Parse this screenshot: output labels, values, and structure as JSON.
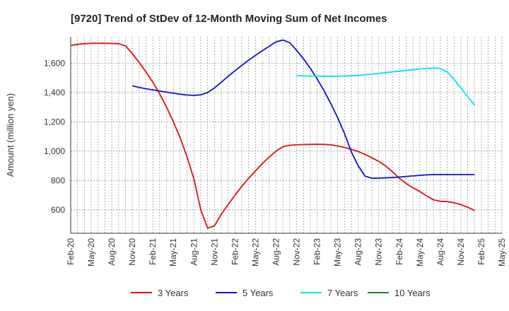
{
  "chart_data": {
    "type": "line",
    "title": "[9720]  Trend of StDev of 12-Month Moving Sum of Net Incomes",
    "xlabel": "",
    "ylabel": "Amount (million yen)",
    "ylim": [
      440,
      1780
    ],
    "y_ticks": [
      600,
      800,
      1000,
      1200,
      1400,
      1600
    ],
    "y_tick_labels": [
      "600",
      "800",
      "1,000",
      "1,200",
      "1,400",
      "1,600"
    ],
    "x_ticks": [
      "Feb-20",
      "May-20",
      "Aug-20",
      "Nov-20",
      "Feb-21",
      "May-21",
      "Aug-21",
      "Nov-21",
      "Feb-22",
      "May-22",
      "Aug-22",
      "Nov-22",
      "Feb-23",
      "May-23",
      "Aug-23",
      "Nov-23",
      "Feb-24",
      "May-24",
      "Aug-24",
      "Nov-24",
      "Feb-25",
      "May-25"
    ],
    "grid": true,
    "legend_position": "bottom",
    "series": [
      {
        "name": "3 Years",
        "color": "#dd1111",
        "points": [
          [
            "Feb-20",
            1720
          ],
          [
            "Mar-20",
            1728
          ],
          [
            "Apr-20",
            1733
          ],
          [
            "May-20",
            1735
          ],
          [
            "Jun-20",
            1736
          ],
          [
            "Jul-20",
            1735
          ],
          [
            "Aug-20",
            1734
          ],
          [
            "Sep-20",
            1733
          ],
          [
            "Oct-20",
            1718
          ],
          [
            "Nov-20",
            1665
          ],
          [
            "Dec-20",
            1605
          ],
          [
            "Jan-21",
            1540
          ],
          [
            "Feb-21",
            1470
          ],
          [
            "Mar-21",
            1390
          ],
          [
            "Apr-21",
            1300
          ],
          [
            "May-21",
            1200
          ],
          [
            "Jun-21",
            1090
          ],
          [
            "Jul-21",
            960
          ],
          [
            "Aug-21",
            810
          ],
          [
            "Sep-21",
            600
          ],
          [
            "Oct-21",
            475
          ],
          [
            "Nov-21",
            490
          ],
          [
            "Dec-21",
            570
          ],
          [
            "Jan-22",
            635
          ],
          [
            "Feb-22",
            700
          ],
          [
            "Mar-22",
            760
          ],
          [
            "Apr-22",
            815
          ],
          [
            "May-22",
            865
          ],
          [
            "Jun-22",
            915
          ],
          [
            "Jul-22",
            960
          ],
          [
            "Aug-22",
            1000
          ],
          [
            "Sep-22",
            1030
          ],
          [
            "Oct-22",
            1040
          ],
          [
            "Nov-22",
            1043
          ],
          [
            "Dec-22",
            1045
          ],
          [
            "Jan-23",
            1046
          ],
          [
            "Feb-23",
            1047
          ],
          [
            "Mar-23",
            1046
          ],
          [
            "Apr-23",
            1043
          ],
          [
            "May-23",
            1035
          ],
          [
            "Jun-23",
            1025
          ],
          [
            "Jul-23",
            1012
          ],
          [
            "Aug-23",
            997
          ],
          [
            "Sep-23",
            978
          ],
          [
            "Oct-23",
            955
          ],
          [
            "Nov-23",
            930
          ],
          [
            "Dec-23",
            900
          ],
          [
            "Jan-24",
            860
          ],
          [
            "Feb-24",
            815
          ],
          [
            "Mar-24",
            780
          ],
          [
            "Apr-24",
            750
          ],
          [
            "May-24",
            725
          ],
          [
            "Jun-24",
            695
          ],
          [
            "Jul-24",
            668
          ],
          [
            "Aug-24",
            658
          ],
          [
            "Sep-24",
            656
          ],
          [
            "Oct-24",
            648
          ],
          [
            "Nov-24",
            635
          ],
          [
            "Dec-24",
            618
          ],
          [
            "Jan-25",
            595
          ]
        ]
      },
      {
        "name": "5 Years",
        "color": "#1111cc",
        "points": [
          [
            "Nov-20",
            1445
          ],
          [
            "Dec-20",
            1435
          ],
          [
            "Jan-21",
            1425
          ],
          [
            "Feb-21",
            1418
          ],
          [
            "Mar-21",
            1410
          ],
          [
            "Apr-21",
            1402
          ],
          [
            "May-21",
            1395
          ],
          [
            "Jun-21",
            1388
          ],
          [
            "Jul-21",
            1383
          ],
          [
            "Aug-21",
            1380
          ],
          [
            "Sep-21",
            1384
          ],
          [
            "Oct-21",
            1400
          ],
          [
            "Nov-21",
            1430
          ],
          [
            "Dec-21",
            1470
          ],
          [
            "Jan-22",
            1510
          ],
          [
            "Feb-22",
            1548
          ],
          [
            "Mar-22",
            1585
          ],
          [
            "Apr-22",
            1620
          ],
          [
            "May-22",
            1653
          ],
          [
            "Jun-22",
            1685
          ],
          [
            "Jul-22",
            1715
          ],
          [
            "Aug-22",
            1745
          ],
          [
            "Sep-22",
            1758
          ],
          [
            "Oct-22",
            1740
          ],
          [
            "Nov-22",
            1688
          ],
          [
            "Dec-22",
            1630
          ],
          [
            "Jan-23",
            1565
          ],
          [
            "Feb-23",
            1493
          ],
          [
            "Mar-23",
            1412
          ],
          [
            "Apr-23",
            1325
          ],
          [
            "May-23",
            1228
          ],
          [
            "Jun-23",
            1120
          ],
          [
            "Jul-23",
            995
          ],
          [
            "Aug-23",
            900
          ],
          [
            "Sep-23",
            830
          ],
          [
            "Oct-23",
            815
          ],
          [
            "Nov-23",
            816
          ],
          [
            "Dec-23",
            818
          ],
          [
            "Jan-24",
            820
          ],
          [
            "Feb-24",
            823
          ],
          [
            "Mar-24",
            827
          ],
          [
            "Apr-24",
            831
          ],
          [
            "May-24",
            835
          ],
          [
            "Jun-24",
            838
          ],
          [
            "Jul-24",
            840
          ],
          [
            "Aug-24",
            840
          ],
          [
            "Sep-24",
            840
          ],
          [
            "Oct-24",
            840
          ],
          [
            "Nov-24",
            840
          ],
          [
            "Dec-24",
            840
          ],
          [
            "Jan-25",
            840
          ]
        ]
      },
      {
        "name": "7 Years",
        "color": "#00e5ee",
        "points": [
          [
            "Nov-22",
            1515
          ],
          [
            "Dec-22",
            1513
          ],
          [
            "Jan-23",
            1512
          ],
          [
            "Feb-23",
            1512
          ],
          [
            "Mar-23",
            1511
          ],
          [
            "Apr-23",
            1511
          ],
          [
            "May-23",
            1511
          ],
          [
            "Jun-23",
            1512
          ],
          [
            "Jul-23",
            1514
          ],
          [
            "Aug-23",
            1516
          ],
          [
            "Sep-23",
            1520
          ],
          [
            "Oct-23",
            1525
          ],
          [
            "Nov-23",
            1530
          ],
          [
            "Dec-23",
            1535
          ],
          [
            "Jan-24",
            1541
          ],
          [
            "Feb-24",
            1545
          ],
          [
            "Mar-24",
            1550
          ],
          [
            "Apr-24",
            1555
          ],
          [
            "May-24",
            1560
          ],
          [
            "Jun-24",
            1565
          ],
          [
            "Jul-24",
            1567
          ],
          [
            "Aug-24",
            1564
          ],
          [
            "Sep-24",
            1540
          ],
          [
            "Oct-24",
            1490
          ],
          [
            "Nov-24",
            1430
          ],
          [
            "Dec-24",
            1370
          ],
          [
            "Jan-25",
            1315
          ]
        ]
      },
      {
        "name": "10 Years",
        "color": "#228822",
        "points": []
      }
    ]
  }
}
